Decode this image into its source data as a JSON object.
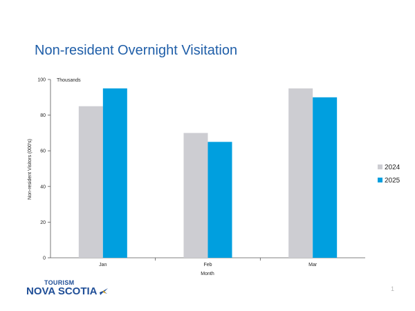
{
  "slide": {
    "title": "Non-resident Overnight Visitation",
    "page_number": "1"
  },
  "logo": {
    "line1": "TOURISM",
    "line2": "NOVA SCOTIA"
  },
  "chart_data": {
    "type": "bar",
    "categories": [
      "Jan",
      "Feb",
      "Mar"
    ],
    "series": [
      {
        "name": "2024",
        "values": [
          85,
          70,
          95
        ],
        "color": "#cdcdd2"
      },
      {
        "name": "2025",
        "values": [
          95,
          65,
          90
        ],
        "color": "#009fdf"
      }
    ],
    "ylim": [
      0,
      100
    ],
    "yticks": [
      0,
      20,
      40,
      60,
      80,
      100
    ],
    "unit_label": "Thousands",
    "xlabel": "Month",
    "ylabel": "Non-resident Visitors (000's)",
    "legend_position": "right",
    "grid": false
  }
}
